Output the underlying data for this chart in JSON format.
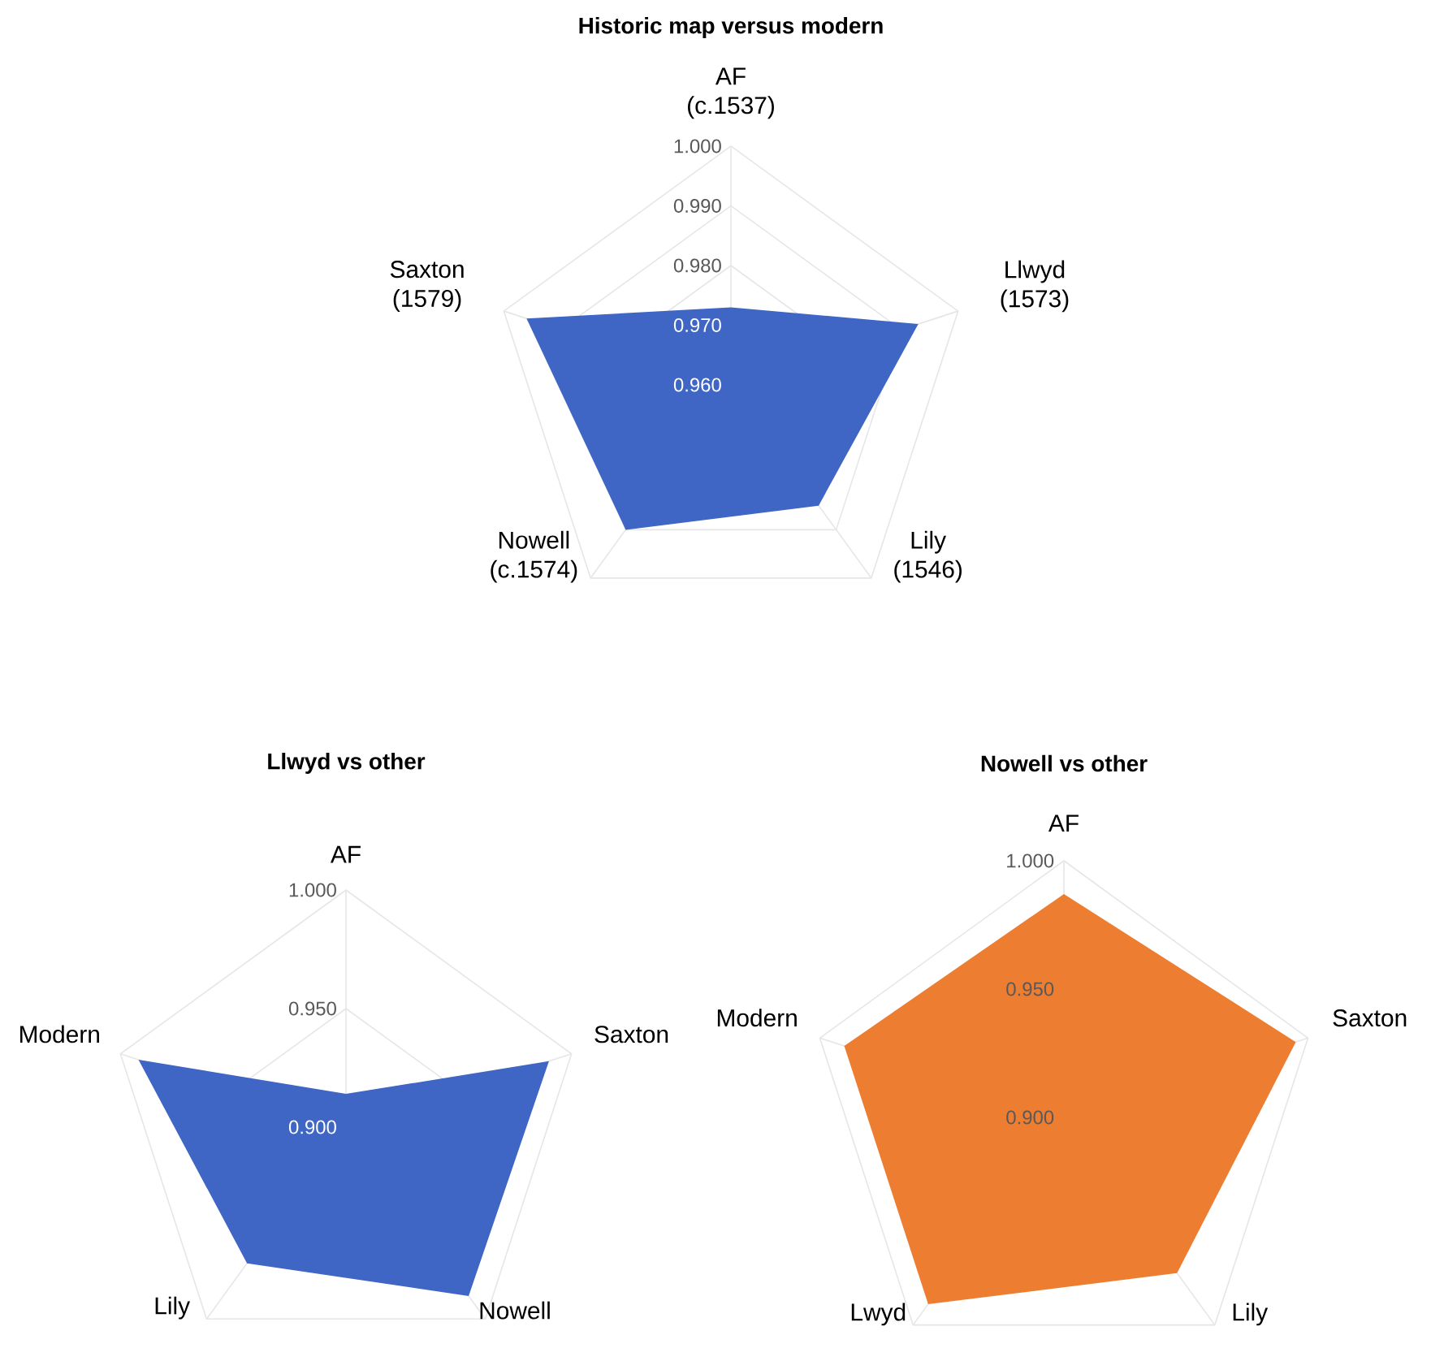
{
  "chart_data": [
    {
      "type": "radar",
      "title": "Historic map versus modern",
      "categories": [
        "AF (c.1537)",
        "Llwyd (1573)",
        "Lily (1546)",
        "Nowell (c.1574)",
        "Saxton (1579)"
      ],
      "series": [
        {
          "color": "#3f66c4",
          "values": [
            0.973,
            0.993,
            0.985,
            0.99,
            0.996
          ]
        }
      ],
      "ylim": [
        0.96,
        1.0
      ],
      "yticks": [
        {
          "value": 0.96,
          "label": "0.960"
        },
        {
          "value": 0.97,
          "label": "0.970"
        },
        {
          "value": 0.98,
          "label": "0.980"
        },
        {
          "value": 0.99,
          "label": "0.990"
        },
        {
          "value": 1,
          "label": "1.000"
        }
      ],
      "grid": true
    },
    {
      "type": "radar",
      "title": "Llwyd vs other",
      "categories": [
        "AF",
        "Saxton",
        "Nowell",
        "Lily",
        "Modern"
      ],
      "series": [
        {
          "color": "#3f66c4",
          "values": [
            0.914,
            0.99,
            0.988,
            0.971,
            0.992
          ]
        }
      ],
      "ylim": [
        0.9,
        1.0
      ],
      "yticks": [
        {
          "value": 0.9,
          "label": "0.900"
        },
        {
          "value": 0.95,
          "label": "0.950"
        },
        {
          "value": 1,
          "label": "1.000"
        }
      ],
      "grid": true
    },
    {
      "type": "radar",
      "title": "Nowell vs other",
      "categories": [
        "AF",
        "Saxton",
        "Lily",
        "Lwyd",
        "Modern"
      ],
      "series": [
        {
          "color": "#ed7d31",
          "values": [
            0.987,
            0.995,
            0.975,
            0.99,
            0.99
          ]
        }
      ],
      "ylim": [
        0.9,
        1.0
      ],
      "yticks": [
        {
          "value": 0.9,
          "label": "0.900"
        },
        {
          "value": 0.95,
          "label": "0.950"
        },
        {
          "value": 1,
          "label": "1.000"
        }
      ],
      "grid": true
    }
  ]
}
